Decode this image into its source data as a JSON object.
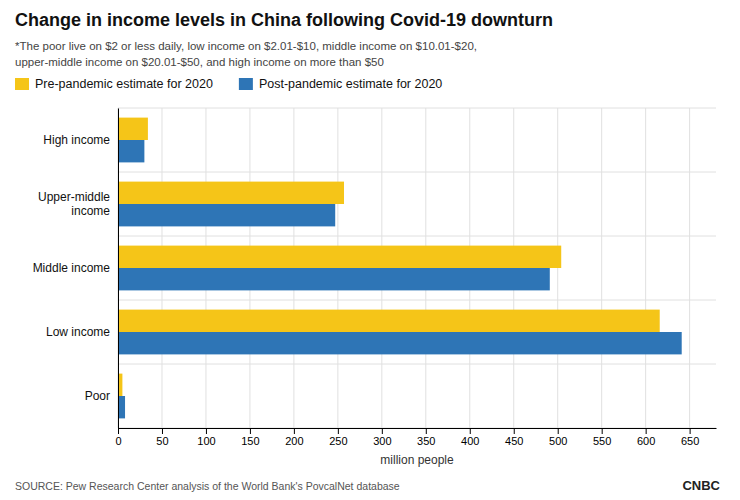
{
  "chart_data": {
    "type": "bar",
    "orientation": "horizontal",
    "title": "Change in income levels in China following Covid-19 downturn",
    "subtitle": "*The poor live on $2 or less daily, low income on $2.01-$10, middle income on $10.01-$20,\nupper-middle income on $20.01-$50, and high income on more than $50",
    "source": "SOURCE: Pew Research Center analysis of the World Bank's PovcalNet database",
    "annotations": [
      "CNBC"
    ],
    "categories": [
      "High income",
      "Upper-middle\nincome",
      "Middle income",
      "Low income",
      "Poor"
    ],
    "series": [
      {
        "name": "Pre-pandemic estimate for 2020",
        "color": "#F5C518",
        "values": [
          34,
          257,
          504,
          616,
          5
        ]
      },
      {
        "name": "Post-pandemic estimate for 2020",
        "color": "#2E75B6",
        "values": [
          30,
          247,
          491,
          641,
          8
        ]
      }
    ],
    "xlabel": "million people",
    "xlim": [
      0,
      680
    ],
    "xticks": [
      0,
      50,
      100,
      150,
      200,
      250,
      300,
      350,
      400,
      450,
      500,
      550,
      600,
      650
    ],
    "grid": true,
    "legend": "top-left"
  }
}
